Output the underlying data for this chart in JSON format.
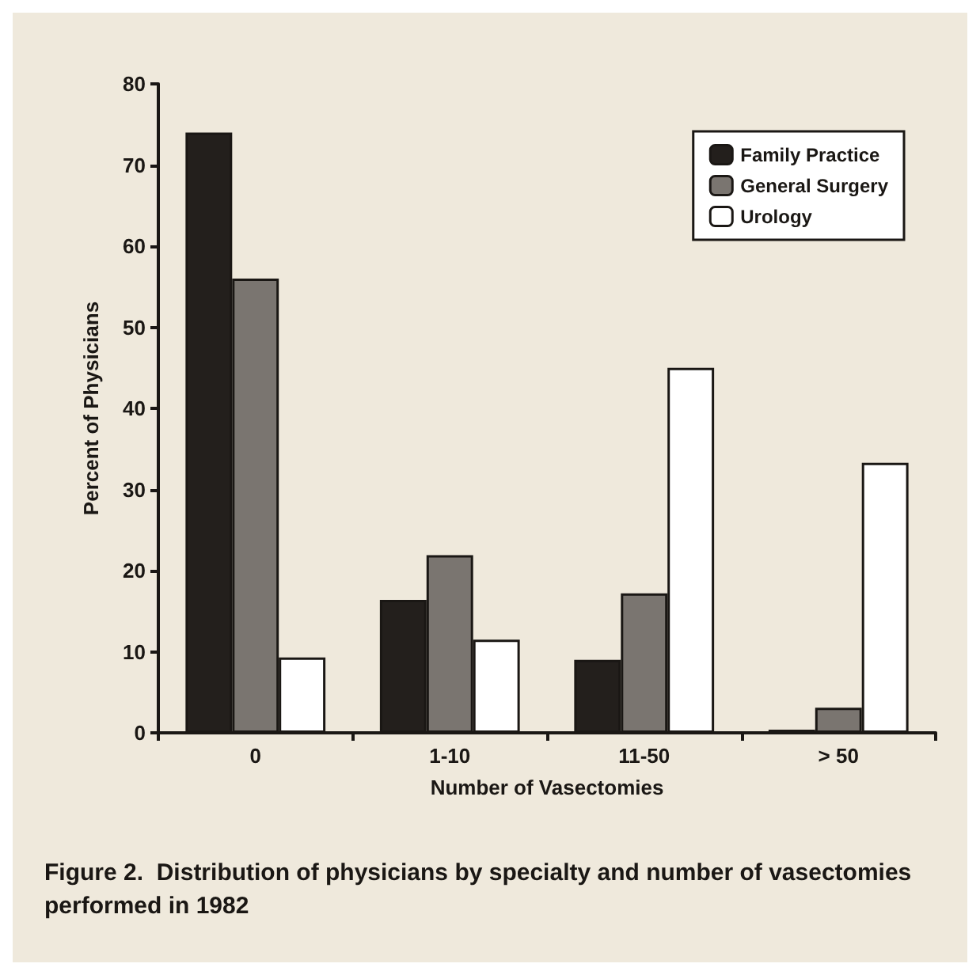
{
  "chart_data": {
    "type": "bar",
    "categories": [
      "0",
      "1-10",
      "11-50",
      "> 50"
    ],
    "series": [
      {
        "name": "Family Practice",
        "color": "#231f1c",
        "values": [
          74,
          16.4,
          9,
          0.4
        ]
      },
      {
        "name": "General Surgery",
        "color": "#7a7570",
        "values": [
          56,
          21.9,
          17.2,
          3.1
        ]
      },
      {
        "name": "Urology",
        "color": "#ffffff",
        "values": [
          9.3,
          11.5,
          45,
          33.3
        ]
      }
    ],
    "xlabel": "Number of Vasectomies",
    "ylabel": "Percent of Physicians",
    "ylim": [
      0,
      80
    ],
    "yticks": [
      0,
      10,
      20,
      30,
      40,
      50,
      60,
      70,
      80
    ],
    "grid": false,
    "legend": "top right",
    "annotations": [
      "Figure 2.  Distribution of physicians by specialty and number of vasectomies performed in 1982"
    ]
  }
}
